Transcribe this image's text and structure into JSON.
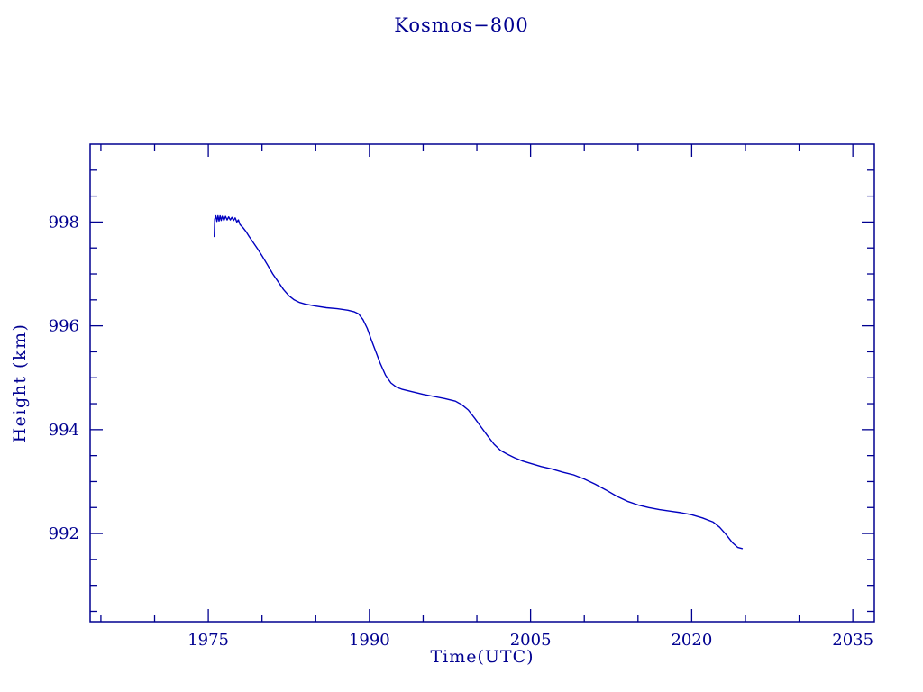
{
  "chart_data": {
    "type": "line",
    "title": "Kosmos−800",
    "xlabel": "Time(UTC)",
    "ylabel": "Height (km)",
    "xlim": [
      1964,
      2037
    ],
    "ylim": [
      990.3,
      999.5
    ],
    "x_ticks": [
      1975,
      1990,
      2005,
      2020,
      2035
    ],
    "x_minor_ticks": [
      1965,
      1970,
      1980,
      1985,
      1995,
      2000,
      2010,
      2015,
      2025,
      2030
    ],
    "y_ticks": [
      992,
      994,
      996,
      998
    ],
    "y_minor_ticks": [
      990.5,
      991,
      991.5,
      992.5,
      993,
      993.5,
      994.5,
      995,
      995.5,
      996.5,
      997,
      997.5,
      998.5,
      999
    ],
    "grid": false,
    "legend": null,
    "colors": {
      "text": "#000090",
      "frame": "#000090",
      "line": "#0000c0",
      "background": "#ffffff"
    },
    "series": [
      {
        "name": "Kosmos-800 height",
        "points": [
          [
            1975.55,
            997.72
          ],
          [
            1975.6,
            998.05
          ],
          [
            1975.7,
            998.12
          ],
          [
            1975.8,
            998.01
          ],
          [
            1975.9,
            998.12
          ],
          [
            1976.0,
            998.02
          ],
          [
            1976.1,
            998.12
          ],
          [
            1976.2,
            998.03
          ],
          [
            1976.3,
            998.11
          ],
          [
            1976.45,
            998.03
          ],
          [
            1976.6,
            998.11
          ],
          [
            1976.75,
            998.04
          ],
          [
            1976.9,
            998.1
          ],
          [
            1977.05,
            998.04
          ],
          [
            1977.2,
            998.09
          ],
          [
            1977.35,
            998.03
          ],
          [
            1977.5,
            998.08
          ],
          [
            1977.65,
            998.0
          ],
          [
            1977.8,
            998.04
          ],
          [
            1977.95,
            997.95
          ],
          [
            1978.2,
            997.9
          ],
          [
            1978.5,
            997.82
          ],
          [
            1978.8,
            997.72
          ],
          [
            1979.2,
            997.6
          ],
          [
            1979.6,
            997.48
          ],
          [
            1980.0,
            997.35
          ],
          [
            1980.5,
            997.18
          ],
          [
            1981.0,
            997.0
          ],
          [
            1981.5,
            996.85
          ],
          [
            1982.0,
            996.7
          ],
          [
            1982.5,
            996.58
          ],
          [
            1983.0,
            996.5
          ],
          [
            1983.5,
            996.45
          ],
          [
            1984.0,
            996.42
          ],
          [
            1985.0,
            996.38
          ],
          [
            1986.0,
            996.35
          ],
          [
            1987.0,
            996.33
          ],
          [
            1988.0,
            996.3
          ],
          [
            1988.6,
            996.27
          ],
          [
            1989.0,
            996.23
          ],
          [
            1989.4,
            996.12
          ],
          [
            1989.8,
            995.95
          ],
          [
            1990.2,
            995.72
          ],
          [
            1990.6,
            995.5
          ],
          [
            1991.0,
            995.28
          ],
          [
            1991.5,
            995.05
          ],
          [
            1992.0,
            994.9
          ],
          [
            1992.5,
            994.82
          ],
          [
            1993.0,
            994.78
          ],
          [
            1994.0,
            994.73
          ],
          [
            1995.0,
            994.68
          ],
          [
            1996.0,
            994.64
          ],
          [
            1997.0,
            994.6
          ],
          [
            1998.0,
            994.55
          ],
          [
            1998.6,
            994.48
          ],
          [
            1999.2,
            994.38
          ],
          [
            1999.8,
            994.22
          ],
          [
            2000.4,
            994.05
          ],
          [
            2001.0,
            993.88
          ],
          [
            2001.6,
            993.72
          ],
          [
            2002.2,
            993.6
          ],
          [
            2002.8,
            993.53
          ],
          [
            2003.5,
            993.46
          ],
          [
            2004.2,
            993.4
          ],
          [
            2005.0,
            993.35
          ],
          [
            2006.0,
            993.29
          ],
          [
            2007.0,
            993.24
          ],
          [
            2008.0,
            993.18
          ],
          [
            2009.0,
            993.13
          ],
          [
            2010.0,
            993.05
          ],
          [
            2011.0,
            992.95
          ],
          [
            2012.0,
            992.84
          ],
          [
            2013.0,
            992.72
          ],
          [
            2014.0,
            992.62
          ],
          [
            2015.0,
            992.55
          ],
          [
            2016.0,
            992.5
          ],
          [
            2017.0,
            992.46
          ],
          [
            2018.0,
            992.43
          ],
          [
            2019.0,
            992.4
          ],
          [
            2020.0,
            992.36
          ],
          [
            2021.0,
            992.3
          ],
          [
            2022.0,
            992.22
          ],
          [
            2022.6,
            992.12
          ],
          [
            2023.2,
            991.98
          ],
          [
            2023.8,
            991.82
          ],
          [
            2024.3,
            991.73
          ],
          [
            2024.7,
            991.71
          ]
        ]
      }
    ]
  }
}
